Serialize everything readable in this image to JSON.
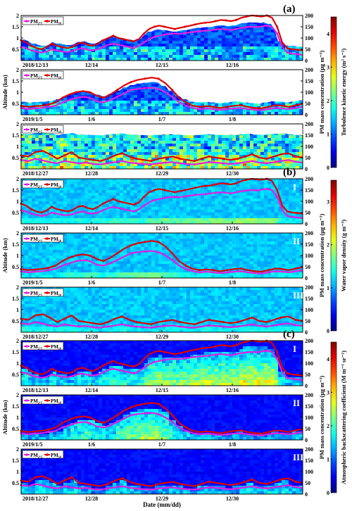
{
  "chart_data": {
    "type": "heatmap",
    "xlabel": "Date (mm/dd)",
    "shared_labels": {
      "left_y": "Altitude (km)",
      "right_y_pm": "PM mass concentration (μg m⁻³)"
    },
    "groups": [
      {
        "letter": "(a)",
        "colorbar_label": "Turbulence kinetic energy (m² s⁻²)",
        "colorbar_ticks": [
          "0",
          "1",
          "2",
          "3",
          "4"
        ],
        "colorbar_range": [
          0,
          4.5
        ],
        "colormap": "jet",
        "field_style": "turbulence"
      },
      {
        "letter": "(b)",
        "colorbar_label": "Water vapor density (g m⁻³)",
        "colorbar_ticks": [
          "0",
          "1",
          "2",
          "3"
        ],
        "colorbar_range": [
          0,
          3.5
        ],
        "colormap": "jet",
        "field_style": "vapor"
      },
      {
        "letter": "(c)",
        "colorbar_label": "Atmospheric backscattering coefficient (M m⁻¹ sr⁻¹)",
        "colorbar_ticks": [
          "0",
          "1",
          "2",
          "3",
          "4"
        ],
        "colorbar_range": [
          0,
          4.5
        ],
        "colormap": "jet",
        "field_style": "backscatter"
      }
    ],
    "axes": {
      "left_y_ticks": [
        "0.5",
        "1",
        "1.5",
        "2"
      ],
      "left_y_range": [
        0,
        2
      ],
      "right_y_ticks": [
        "0",
        "50",
        "100",
        "150",
        "200"
      ],
      "right_y_range": [
        0,
        200
      ]
    },
    "cases": [
      {
        "roman": "I",
        "x_ticks": [
          "2018/12/13",
          "12/14",
          "12/15",
          "12/16"
        ],
        "legend": [
          "PM₂.₅",
          "PM₁₀"
        ],
        "pm25": [
          60,
          55,
          45,
          40,
          35,
          40,
          50,
          45,
          40,
          38,
          42,
          50,
          55,
          48,
          45,
          50,
          60,
          70,
          75,
          70,
          65,
          60,
          55,
          65,
          80,
          95,
          105,
          110,
          115,
          118,
          120,
          118,
          122,
          125,
          128,
          130,
          132,
          135,
          138,
          140,
          138,
          135,
          140,
          145,
          148,
          150,
          148,
          152,
          155,
          150,
          120,
          60,
          35,
          30,
          28,
          25
        ],
        "pm10": [
          90,
          80,
          65,
          55,
          50,
          60,
          75,
          65,
          60,
          55,
          60,
          75,
          80,
          70,
          65,
          75,
          90,
          100,
          110,
          100,
          95,
          90,
          85,
          95,
          120,
          140,
          150,
          155,
          150,
          145,
          140,
          145,
          150,
          155,
          160,
          165,
          168,
          170,
          175,
          180,
          178,
          175,
          180,
          190,
          195,
          200,
          198,
          195,
          200,
          190,
          150,
          80,
          55,
          50,
          48,
          45
        ]
      },
      {
        "roman": "II",
        "x_ticks": [
          "2019/1/5",
          "1/6",
          "1/7",
          "1/8"
        ],
        "legend": [
          "PM₂.₅",
          "PM₁₀"
        ],
        "pm25": [
          30,
          25,
          28,
          30,
          35,
          40,
          55,
          65,
          75,
          80,
          75,
          60,
          55,
          65,
          80,
          95,
          110,
          115,
          118,
          120,
          115,
          100,
          80,
          55,
          40,
          30,
          25,
          28,
          25,
          22,
          25,
          28,
          30,
          25,
          22,
          20,
          25,
          30,
          28,
          25,
          30,
          35
        ],
        "pm10": [
          40,
          35,
          38,
          40,
          45,
          55,
          75,
          90,
          100,
          105,
          100,
          85,
          75,
          90,
          110,
          130,
          145,
          155,
          160,
          165,
          160,
          140,
          110,
          75,
          55,
          40,
          35,
          38,
          35,
          30,
          35,
          40,
          42,
          35,
          30,
          28,
          35,
          42,
          40,
          35,
          42,
          48
        ]
      },
      {
        "roman": "III",
        "x_ticks": [
          "2018/12/27",
          "12/28",
          "12/29",
          "12/30"
        ],
        "legend": [
          "PM₂.₅",
          "PM₁₀"
        ],
        "pm25": [
          40,
          35,
          45,
          38,
          30,
          25,
          35,
          30,
          25,
          28,
          22,
          20,
          25,
          30,
          35,
          28,
          25,
          22,
          20,
          25,
          28,
          30,
          25,
          22,
          20,
          25,
          30,
          28,
          25,
          22,
          25,
          30,
          35,
          28,
          25,
          30,
          35,
          40,
          32,
          28
        ],
        "pm10": [
          60,
          55,
          75,
          80,
          65,
          45,
          60,
          75,
          50,
          45,
          40,
          35,
          45,
          60,
          70,
          55,
          45,
          40,
          35,
          45,
          50,
          55,
          45,
          40,
          35,
          45,
          55,
          50,
          45,
          40,
          45,
          55,
          65,
          50,
          45,
          55,
          65,
          70,
          55,
          50
        ]
      }
    ],
    "series_colors": {
      "PM₂.₅": "#e020e0",
      "PM₁₀": "#e00000"
    }
  }
}
